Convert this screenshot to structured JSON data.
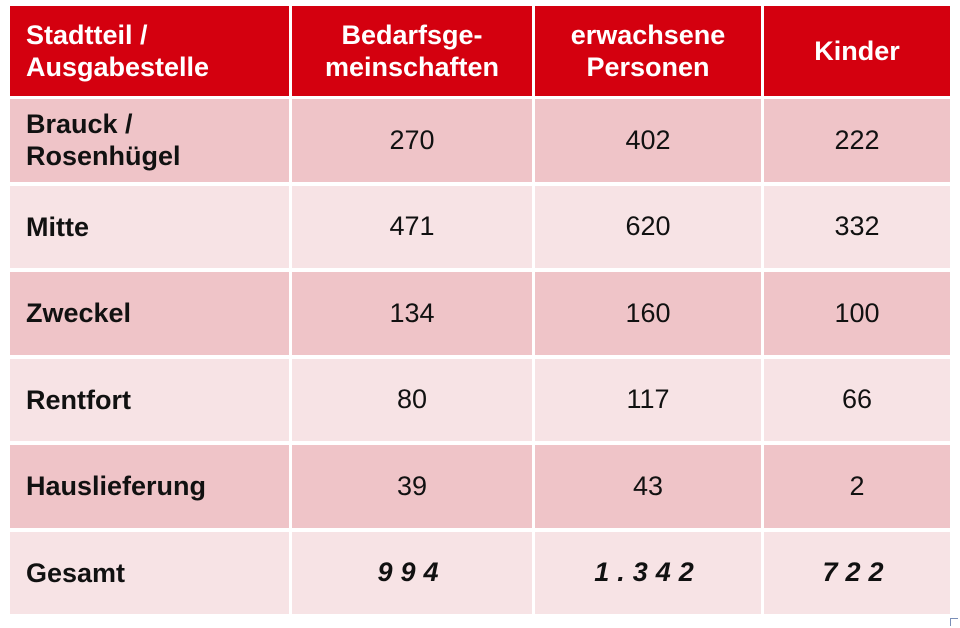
{
  "table": {
    "headers": [
      "Stadtteil /\nAusgabestelle",
      "Bedarfsge-\nmeinschaften",
      "erwachsene\nPersonen",
      "Kinder"
    ],
    "rows": [
      {
        "name": "Brauck /\nRosenhügel",
        "values": [
          "270",
          "402",
          "222"
        ]
      },
      {
        "name": "Mitte",
        "values": [
          "471",
          "620",
          "332"
        ]
      },
      {
        "name": "Zweckel",
        "values": [
          "134",
          "160",
          "100"
        ]
      },
      {
        "name": "Rentfort",
        "values": [
          "80",
          "117",
          "66"
        ]
      },
      {
        "name": "Hauslieferung",
        "values": [
          "39",
          "43",
          "2"
        ]
      },
      {
        "name": "Gesamt",
        "values": [
          "994",
          "1.342",
          "722"
        ]
      }
    ]
  },
  "colors": {
    "header_bg": "#d4000f",
    "row_dark": "#efc4c8",
    "row_light": "#f7e3e5"
  }
}
